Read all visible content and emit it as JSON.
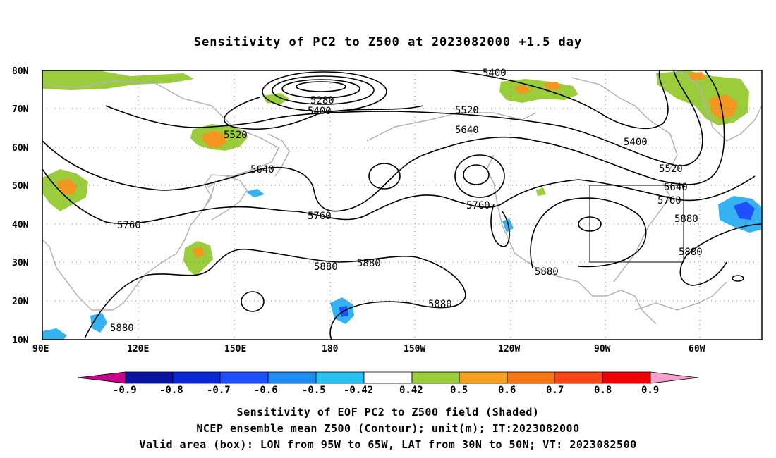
{
  "title": "Sensitivity of PC2 to Z500 at 2023082000 +1.5 day",
  "map": {
    "lat_labels": [
      "80N",
      "70N",
      "60N",
      "50N",
      "40N",
      "30N",
      "20N",
      "10N"
    ],
    "lon_labels": [
      "90E",
      "120E",
      "150E",
      "180",
      "150W",
      "120W",
      "90W",
      "60W"
    ],
    "contour_labels": [
      {
        "text": "5400"
      },
      {
        "text": "5280"
      },
      {
        "text": "5400"
      },
      {
        "text": "5520"
      },
      {
        "text": "5640"
      },
      {
        "text": "5520"
      },
      {
        "text": "5400"
      },
      {
        "text": "5640"
      },
      {
        "text": "5760"
      },
      {
        "text": "5760"
      },
      {
        "text": "5760"
      },
      {
        "text": "5520"
      },
      {
        "text": "5640"
      },
      {
        "text": "5760"
      },
      {
        "text": "5880"
      },
      {
        "text": "5880"
      },
      {
        "text": "5880"
      },
      {
        "text": "5880"
      },
      {
        "text": "5880"
      },
      {
        "text": "5880"
      },
      {
        "text": "5880"
      }
    ],
    "colors": {
      "land_outline": "#b4b4b4",
      "contour": "#000000",
      "green": "#9acc3c",
      "orange": "#f5961e",
      "blue": "#35b3f0",
      "dark_blue": "#1050ff"
    }
  },
  "colorbar": {
    "labels": [
      "-0.9",
      "-0.8",
      "-0.7",
      "-0.6",
      "-0.5",
      "-0.42",
      "0.42",
      "0.5",
      "0.6",
      "0.7",
      "0.8",
      "0.9"
    ],
    "colors": [
      "#c8008c",
      "#0a14a0",
      "#0a28d8",
      "#1e50ff",
      "#1e8cf0",
      "#28c0f0",
      "#ffffff",
      "#9acc3c",
      "#f5a01e",
      "#f57814",
      "#fa4614",
      "#f00000",
      "#f5a0c8"
    ]
  },
  "captions": {
    "line1": "Sensitivity of EOF PC2 to Z500 field (Shaded)",
    "line2": "NCEP ensemble mean Z500 (Contour); unit(m); IT:2023082000",
    "line3": "Valid area (box): LON from 95W to 65W, LAT from 30N to 50N; VT: 2023082500"
  }
}
